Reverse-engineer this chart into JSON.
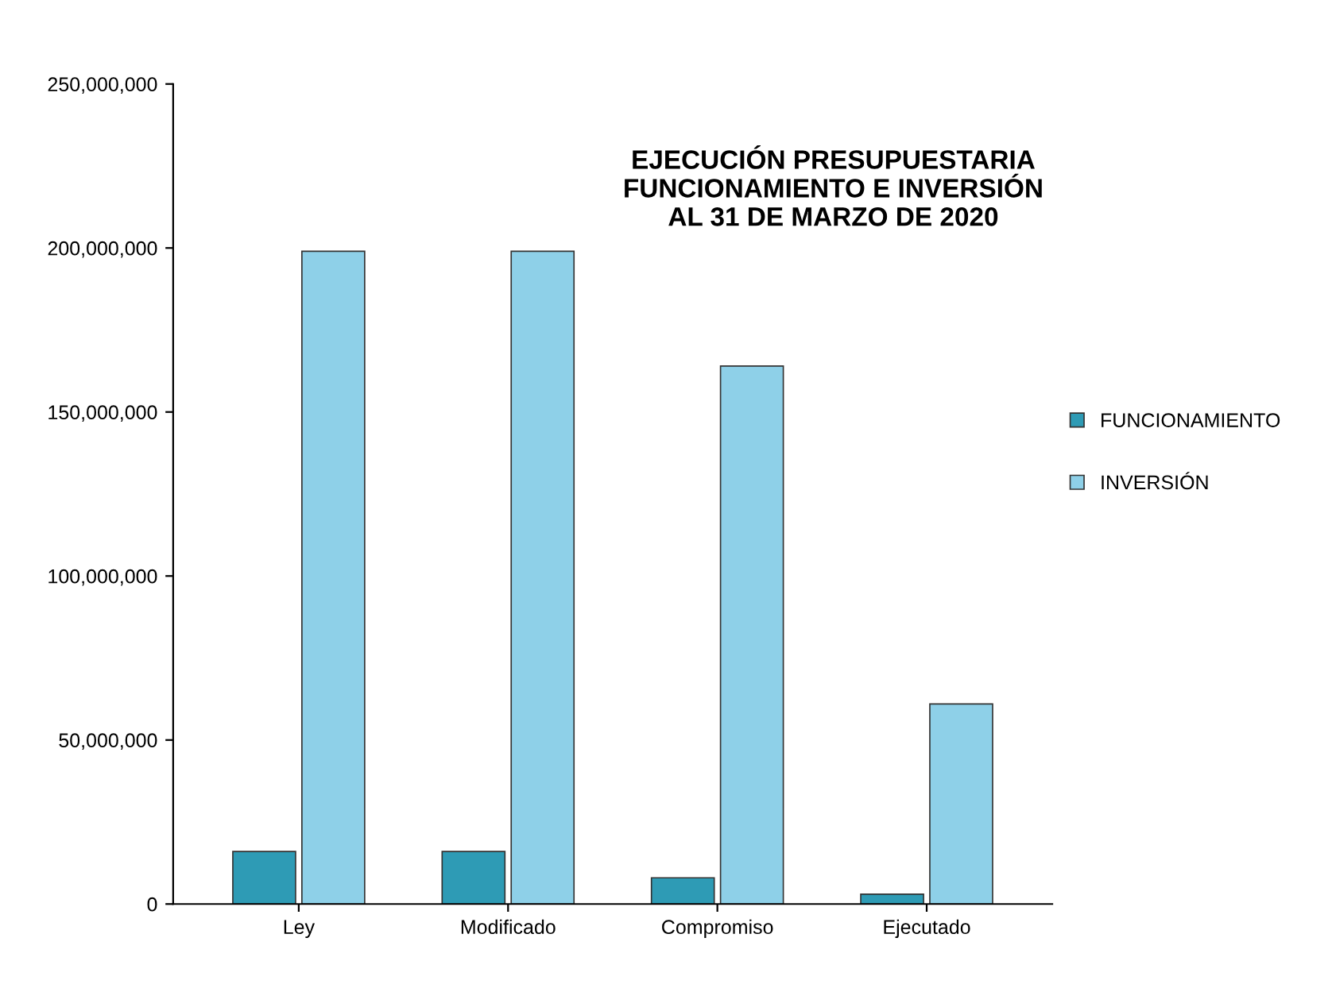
{
  "chart_data": {
    "type": "bar",
    "title": "EJECUCIÓN PRESUPUESTARIA\nFUNCIONAMIENTO E INVERSIÓN\nAL 31 DE MARZO DE 2020",
    "categories": [
      "Ley",
      "Modificado",
      "Compromiso",
      "Ejecutado"
    ],
    "series": [
      {
        "name": "FUNCIONAMIENTO",
        "color": "#2e9bb5",
        "values": [
          16000000,
          16000000,
          8000000,
          3000000
        ]
      },
      {
        "name": "INVERSIÓN",
        "color": "#8ed0e8",
        "values": [
          199000000,
          199000000,
          164000000,
          61000000
        ]
      }
    ],
    "ylim": [
      0,
      250000000
    ],
    "yticks": [
      {
        "value": 0,
        "label": "0"
      },
      {
        "value": 50000000,
        "label": "50,000,000"
      },
      {
        "value": 100000000,
        "label": "100,000,000"
      },
      {
        "value": 150000000,
        "label": "150,000,000"
      },
      {
        "value": 200000000,
        "label": "200,000,000"
      },
      {
        "value": 250000000,
        "label": "250,000,000"
      }
    ],
    "grid": false,
    "legend": "right"
  }
}
